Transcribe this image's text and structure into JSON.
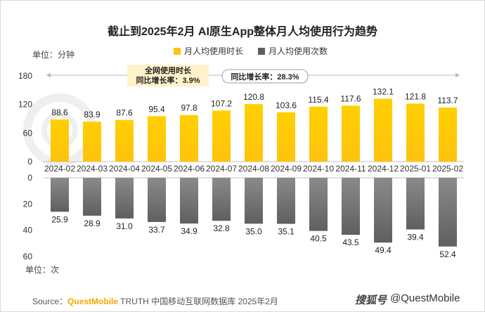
{
  "chart_data": {
    "type": "bar",
    "title": "截止到2025年2月 AI原生App整体月人均使用行为趋势",
    "categories": [
      "2024-02",
      "2024-03",
      "2024-04",
      "2024-05",
      "2024-06",
      "2024-07",
      "2024-08",
      "2024-09",
      "2024-10",
      "2024-11",
      "2024-12",
      "2025-01",
      "2025-02"
    ],
    "series": [
      {
        "name": "月人均使用时长",
        "unit": "分钟",
        "color": "#ffc20e",
        "values": [
          88.6,
          83.9,
          87.6,
          95.4,
          97.8,
          107.2,
          120.8,
          103.6,
          115.4,
          117.6,
          132.1,
          121.8,
          113.7
        ]
      },
      {
        "name": "月人均使用次数",
        "unit": "次",
        "color": "#5f5f5f",
        "values": [
          25.9,
          28.9,
          31.0,
          33.7,
          34.9,
          32.8,
          35.0,
          35.1,
          40.5,
          43.5,
          49.4,
          39.4,
          52.4
        ]
      }
    ],
    "top_axis": {
      "label": "单位：分钟",
      "ylim": [
        0,
        180
      ],
      "ticks": [
        "180",
        "120",
        "60",
        "0"
      ]
    },
    "bottom_axis": {
      "label": "单位：次",
      "ylim": [
        0,
        60
      ],
      "ticks": [
        "0",
        "20",
        "40",
        "60"
      ]
    },
    "annotations": {
      "network_label_line1": "全网使用时长",
      "network_label_line2": "同比增长率：3.9%",
      "yoy_label": "同比增长率：28.3%"
    },
    "legend_position": "top-center"
  },
  "source": {
    "prefix": "Source：",
    "brand": "QuestMobile",
    "rest": " TRUTH 中国移动互联网数据库 2025年2月"
  },
  "watermark": {
    "logo": "搜狐号",
    "handle": "@QuestMobile"
  }
}
